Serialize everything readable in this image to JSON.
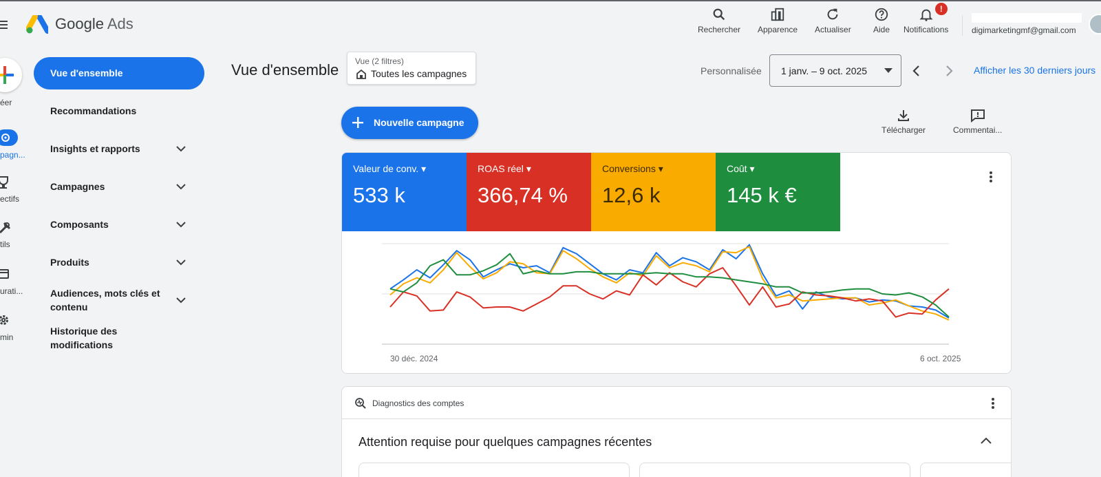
{
  "app": {
    "name_part1": "Google",
    "name_part2": "Ads"
  },
  "topbar": {
    "search": "Rechercher",
    "appearance": "Apparence",
    "refresh": "Actualiser",
    "help": "Aide",
    "notifications": "Notifications",
    "notifications_badge": "!",
    "email": "digimarketingmf@gmail.com"
  },
  "rail": {
    "create": "éer",
    "campaigns": "pagn...",
    "goals": "ectifs",
    "tools": "tils",
    "billing": "urati...",
    "admin": "min"
  },
  "sidebar": {
    "items": [
      {
        "label": "Vue d'ensemble"
      },
      {
        "label": "Recommandations"
      },
      {
        "label": "Insights et rapports"
      },
      {
        "label": "Campagnes"
      },
      {
        "label": "Composants"
      },
      {
        "label": "Produits"
      },
      {
        "label": "Audiences, mots clés et contenu"
      },
      {
        "label": "Historique des modifications"
      }
    ]
  },
  "header": {
    "title": "Vue d'ensemble",
    "filter_label": "Vue (2 filtres)",
    "filter_value": "Toutes les campagnes",
    "date_preset": "Personnalisée",
    "date_range": "1 janv. – 9 oct. 2025",
    "last_30": "Afficher les 30 derniers jours"
  },
  "actions": {
    "new_campaign": "Nouvelle campagne",
    "download": "Télécharger",
    "comments": "Commentai..."
  },
  "metrics": [
    {
      "label": "Valeur de conv.",
      "value": "533 k",
      "color": "#1a73e8"
    },
    {
      "label": "ROAS réel",
      "value": "366,74 %",
      "color": "#d93025"
    },
    {
      "label": "Conversions",
      "value": "12,6 k",
      "color": "#f9ab00"
    },
    {
      "label": "Coût",
      "value": "145 k €",
      "color": "#1e8e3e"
    }
  ],
  "chart_data": {
    "type": "line",
    "x_start_label": "30 déc. 2024",
    "x_end_label": "6 oct. 2025",
    "ylim": [
      0,
      100
    ],
    "series": [
      {
        "color": "#1a73e8",
        "values": [
          55,
          64,
          74,
          66,
          79,
          93,
          84,
          67,
          74,
          80,
          76,
          78,
          71,
          96,
          90,
          80,
          70,
          64,
          74,
          71,
          91,
          78,
          86,
          82,
          74,
          94,
          85,
          99,
          70,
          48,
          53,
          35,
          52,
          47,
          45,
          46,
          42,
          44,
          43,
          38,
          37,
          34,
          26
        ]
      },
      {
        "color": "#f9ab00",
        "values": [
          49,
          60,
          66,
          61,
          74,
          91,
          77,
          65,
          71,
          82,
          80,
          71,
          70,
          93,
          85,
          75,
          67,
          61,
          71,
          68,
          88,
          76,
          81,
          78,
          72,
          92,
          91,
          97,
          65,
          46,
          49,
          43,
          44,
          45,
          46,
          46,
          39,
          41,
          44,
          38,
          33,
          30,
          24
        ]
      },
      {
        "color": "#d93025",
        "values": [
          37,
          52,
          48,
          33,
          34,
          52,
          47,
          36,
          37,
          37,
          33,
          40,
          47,
          58,
          58,
          50,
          45,
          53,
          49,
          69,
          59,
          71,
          62,
          57,
          70,
          76,
          58,
          39,
          57,
          37,
          40,
          52,
          49,
          48,
          46,
          43,
          45,
          43,
          27,
          31,
          30,
          44,
          55
        ]
      },
      {
        "color": "#1e8e3e",
        "values": [
          55,
          52,
          61,
          78,
          84,
          69,
          69,
          73,
          79,
          90,
          70,
          73,
          70,
          70,
          72,
          72,
          70,
          70,
          70,
          70,
          71,
          70,
          70,
          67,
          67,
          66,
          64,
          62,
          60,
          57,
          57,
          51,
          51,
          52,
          54,
          55,
          55,
          50,
          49,
          51,
          47,
          39,
          27
        ]
      }
    ]
  },
  "diagnostics": {
    "title": "Diagnostics des comptes",
    "attention": "Attention requise pour quelques campagnes récentes"
  }
}
